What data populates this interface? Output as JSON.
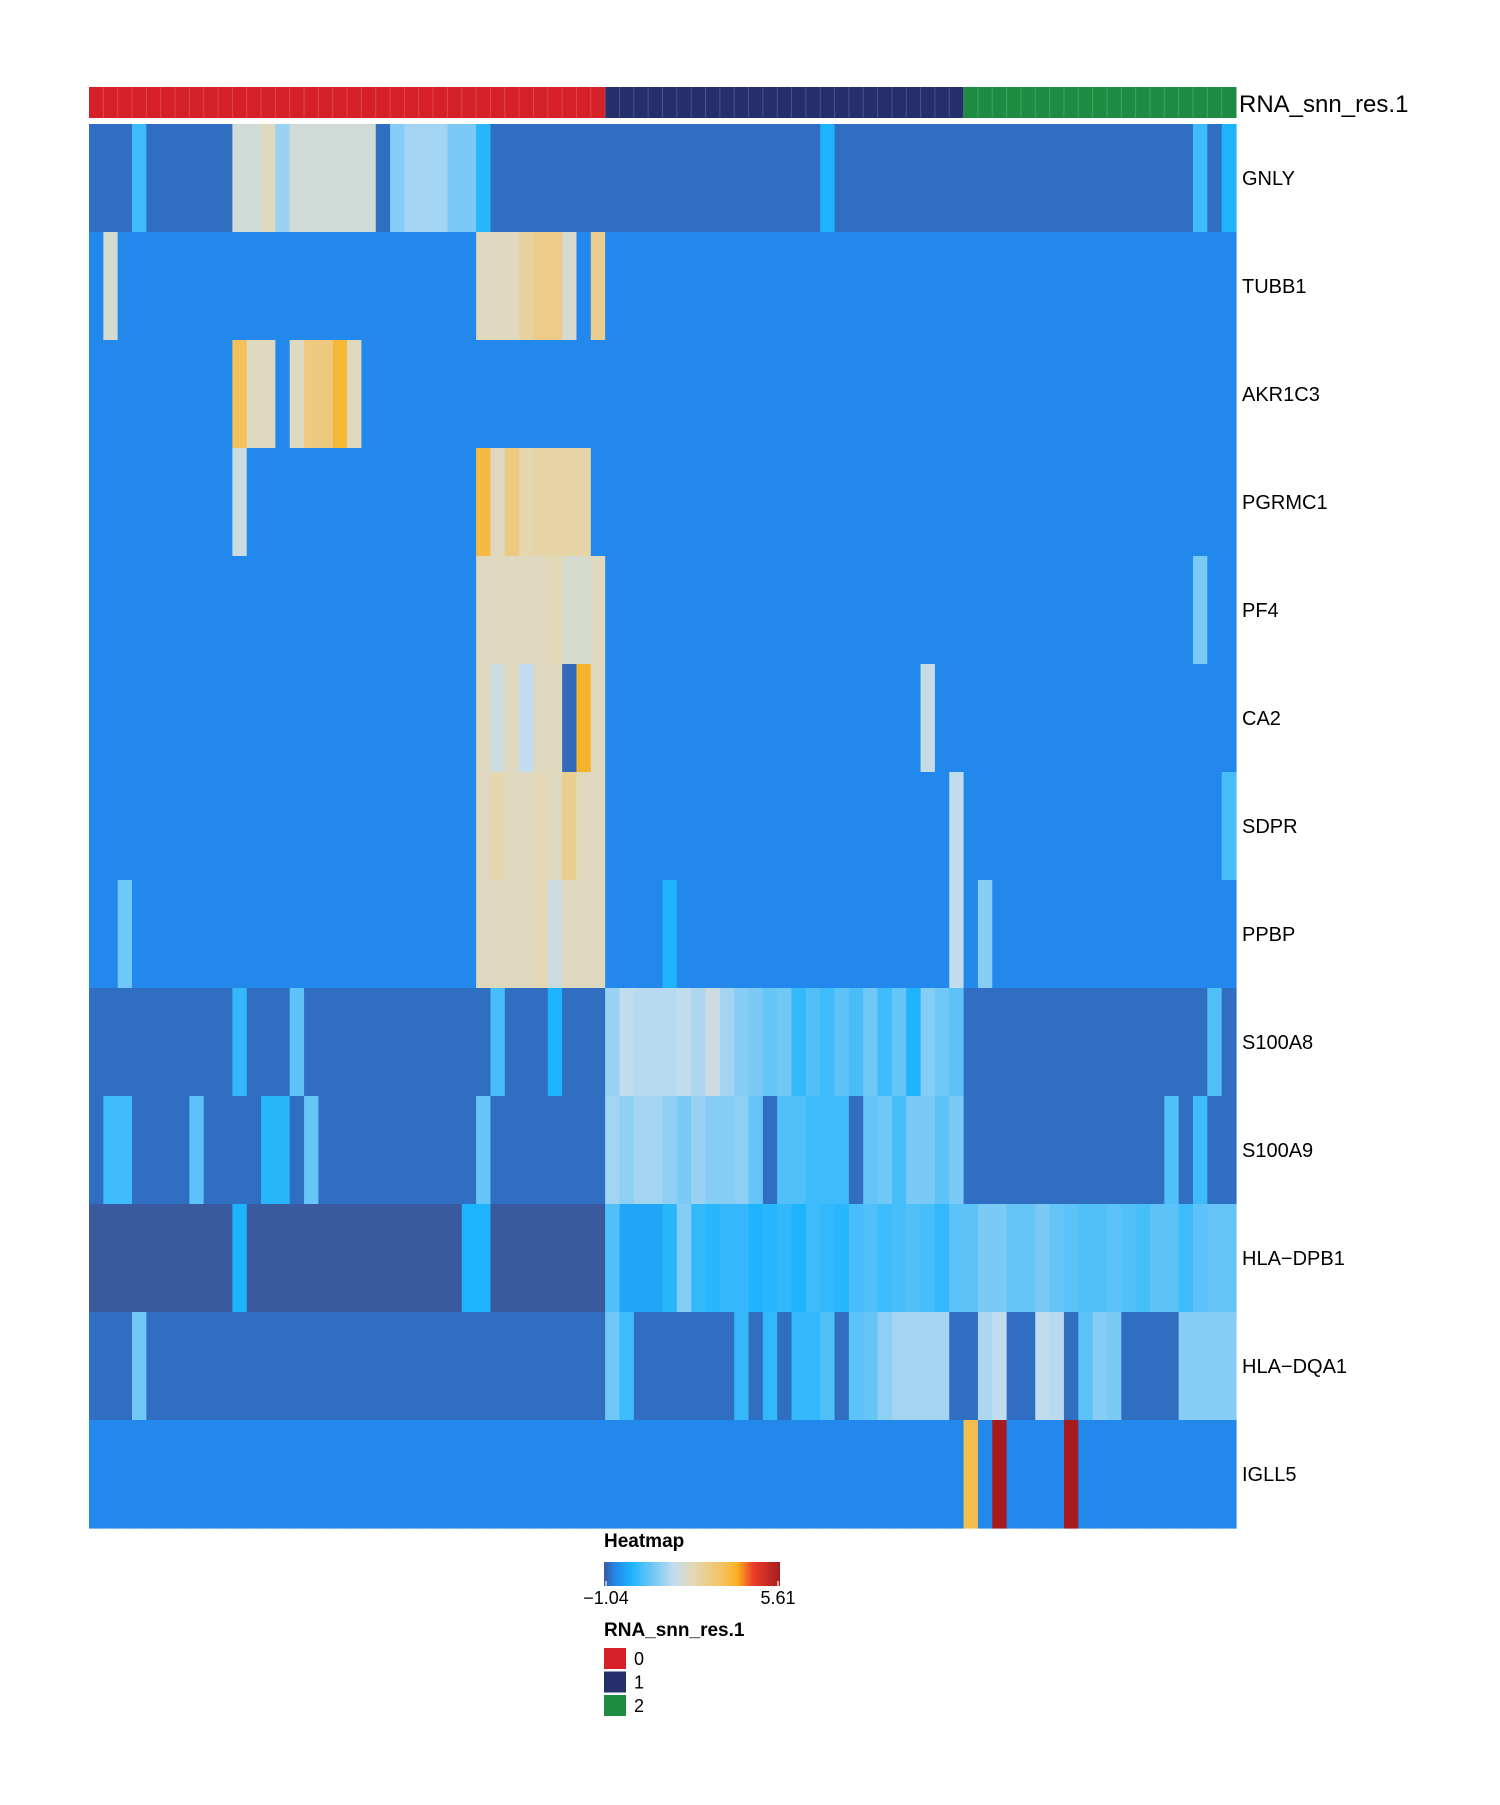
{
  "chart_data": {
    "type": "heatmap",
    "annotation_name": "RNA_snn_res.1",
    "groups": [
      {
        "label": "0",
        "color": "#d62027",
        "count": 36
      },
      {
        "label": "1",
        "color": "#252f6b",
        "count": 25
      },
      {
        "label": "2",
        "color": "#1d8b42",
        "count": 19
      }
    ],
    "genes": [
      "GNLY",
      "TUBB1",
      "AKR1C3",
      "PGRMC1",
      "PF4",
      "CA2",
      "SDPR",
      "PPBP",
      "S100A8",
      "S100A9",
      "HLA−DPB1",
      "HLA−DQA1",
      "IGLL5"
    ],
    "baselines": [
      -0.85,
      -0.6,
      -0.6,
      -0.6,
      -0.6,
      -0.6,
      -0.6,
      -0.6,
      -0.85,
      -0.85,
      -1.04,
      -0.85,
      -0.6
    ],
    "highlights": [
      [
        [
          3,
          0.3
        ],
        [
          10,
          1.9
        ],
        [
          11,
          1.9
        ],
        [
          12,
          2.2
        ],
        [
          13,
          1.2
        ],
        [
          14,
          1.9
        ],
        [
          15,
          1.9
        ],
        [
          16,
          1.9
        ],
        [
          17,
          1.9
        ],
        [
          18,
          1.9
        ],
        [
          19,
          1.9
        ],
        [
          21,
          1.0
        ],
        [
          22,
          1.3
        ],
        [
          23,
          1.3
        ],
        [
          24,
          1.3
        ],
        [
          25,
          0.9
        ],
        [
          26,
          0.9
        ],
        [
          27,
          0.1
        ],
        [
          51,
          0.0
        ],
        [
          77,
          0.3
        ],
        [
          79,
          0.0
        ]
      ],
      [
        [
          1,
          2.0
        ],
        [
          27,
          2.2
        ],
        [
          28,
          2.2
        ],
        [
          29,
          2.2
        ],
        [
          30,
          2.6
        ],
        [
          31,
          2.9
        ],
        [
          32,
          2.9
        ],
        [
          33,
          2.0
        ],
        [
          35,
          2.8
        ]
      ],
      [
        [
          10,
          3.5
        ],
        [
          11,
          2.2
        ],
        [
          12,
          2.2
        ],
        [
          14,
          2.2
        ],
        [
          15,
          3.0
        ],
        [
          16,
          3.0
        ],
        [
          17,
          3.8
        ],
        [
          18,
          2.2
        ]
      ],
      [
        [
          10,
          1.8
        ],
        [
          27,
          3.7
        ],
        [
          28,
          2.2
        ],
        [
          29,
          3.0
        ],
        [
          30,
          2.4
        ],
        [
          31,
          2.5
        ],
        [
          32,
          2.5
        ],
        [
          33,
          2.5
        ],
        [
          34,
          2.5
        ]
      ],
      [
        [
          27,
          2.2
        ],
        [
          28,
          2.2
        ],
        [
          29,
          2.2
        ],
        [
          30,
          2.2
        ],
        [
          31,
          2.2
        ],
        [
          32,
          2.3
        ],
        [
          33,
          2.0
        ],
        [
          34,
          2.0
        ],
        [
          35,
          2.2
        ],
        [
          77,
          0.9
        ]
      ],
      [
        [
          27,
          2.2
        ],
        [
          28,
          1.8
        ],
        [
          29,
          2.2
        ],
        [
          30,
          1.6
        ],
        [
          31,
          2.2
        ],
        [
          32,
          2.2
        ],
        [
          33,
          -0.9
        ],
        [
          34,
          3.9
        ],
        [
          35,
          2.2
        ],
        [
          58,
          1.7
        ]
      ],
      [
        [
          27,
          2.2
        ],
        [
          28,
          2.4
        ],
        [
          29,
          2.2
        ],
        [
          30,
          2.2
        ],
        [
          31,
          2.3
        ],
        [
          32,
          2.2
        ],
        [
          33,
          2.8
        ],
        [
          34,
          2.2
        ],
        [
          35,
          2.2
        ],
        [
          60,
          1.6
        ],
        [
          79,
          0.4
        ]
      ],
      [
        [
          2,
          0.8
        ],
        [
          27,
          2.2
        ],
        [
          28,
          2.2
        ],
        [
          29,
          2.2
        ],
        [
          30,
          2.2
        ],
        [
          31,
          2.3
        ],
        [
          32,
          1.8
        ],
        [
          33,
          2.2
        ],
        [
          34,
          2.2
        ],
        [
          35,
          2.2
        ],
        [
          40,
          0.0
        ],
        [
          60,
          1.6
        ],
        [
          62,
          1.0
        ]
      ],
      [
        [
          10,
          0.2
        ],
        [
          14,
          0.6
        ],
        [
          28,
          0.4
        ],
        [
          32,
          0.0
        ],
        [
          36,
          1.2
        ],
        [
          37,
          1.6
        ],
        [
          38,
          1.5
        ],
        [
          39,
          1.5
        ],
        [
          40,
          1.5
        ],
        [
          41,
          1.6
        ],
        [
          42,
          1.4
        ],
        [
          43,
          1.8
        ],
        [
          44,
          1.3
        ],
        [
          45,
          1.0
        ],
        [
          46,
          0.9
        ],
        [
          47,
          0.7
        ],
        [
          48,
          0.8
        ],
        [
          49,
          0.2
        ],
        [
          50,
          0.5
        ],
        [
          51,
          0.3
        ],
        [
          52,
          0.6
        ],
        [
          53,
          0.4
        ],
        [
          54,
          0.8
        ],
        [
          55,
          0.3
        ],
        [
          56,
          0.7
        ],
        [
          57,
          0.0
        ],
        [
          58,
          1.0
        ],
        [
          59,
          0.8
        ],
        [
          60,
          0.6
        ],
        [
          78,
          0.5
        ]
      ],
      [
        [
          1,
          0.3
        ],
        [
          2,
          0.3
        ],
        [
          7,
          0.6
        ],
        [
          12,
          0.1
        ],
        [
          13,
          0.1
        ],
        [
          15,
          0.7
        ],
        [
          27,
          0.7
        ],
        [
          36,
          1.3
        ],
        [
          37,
          1.1
        ],
        [
          38,
          1.3
        ],
        [
          39,
          1.3
        ],
        [
          40,
          1.1
        ],
        [
          41,
          0.9
        ],
        [
          42,
          1.2
        ],
        [
          43,
          1.0
        ],
        [
          44,
          1.0
        ],
        [
          45,
          1.1
        ],
        [
          46,
          0.7
        ],
        [
          48,
          0.5
        ],
        [
          49,
          0.5
        ],
        [
          50,
          0.3
        ],
        [
          51,
          0.3
        ],
        [
          52,
          0.3
        ],
        [
          54,
          0.7
        ],
        [
          55,
          0.8
        ],
        [
          56,
          0.4
        ],
        [
          57,
          0.9
        ],
        [
          58,
          0.9
        ],
        [
          59,
          0.6
        ],
        [
          60,
          0.9
        ],
        [
          75,
          0.5
        ],
        [
          77,
          0.3
        ]
      ],
      [
        [
          10,
          0.0
        ],
        [
          26,
          0.0
        ],
        [
          27,
          0.0
        ],
        [
          36,
          0.5
        ],
        [
          37,
          -0.2
        ],
        [
          38,
          -0.2
        ],
        [
          39,
          -0.2
        ],
        [
          40,
          0.1
        ],
        [
          41,
          1.0
        ],
        [
          42,
          0.2
        ],
        [
          43,
          0.1
        ],
        [
          44,
          0.2
        ],
        [
          45,
          0.2
        ],
        [
          46,
          0.0
        ],
        [
          47,
          0.1
        ],
        [
          48,
          0.2
        ],
        [
          49,
          0.0
        ],
        [
          50,
          0.3
        ],
        [
          51,
          0.2
        ],
        [
          52,
          0.1
        ],
        [
          53,
          0.4
        ],
        [
          54,
          0.5
        ],
        [
          55,
          0.3
        ],
        [
          56,
          0.4
        ],
        [
          57,
          0.5
        ],
        [
          58,
          0.4
        ],
        [
          59,
          0.2
        ],
        [
          60,
          0.6
        ],
        [
          61,
          0.6
        ],
        [
          62,
          0.9
        ],
        [
          63,
          0.9
        ],
        [
          64,
          0.7
        ],
        [
          65,
          0.7
        ],
        [
          66,
          0.9
        ],
        [
          67,
          0.7
        ],
        [
          68,
          0.6
        ],
        [
          69,
          0.5
        ],
        [
          70,
          0.5
        ],
        [
          71,
          0.6
        ],
        [
          72,
          0.5
        ],
        [
          73,
          0.4
        ],
        [
          74,
          0.6
        ],
        [
          75,
          0.6
        ],
        [
          76,
          0.3
        ],
        [
          77,
          0.6
        ],
        [
          78,
          0.7
        ],
        [
          79,
          0.7
        ]
      ],
      [
        [
          3,
          0.8
        ],
        [
          36,
          0.8
        ],
        [
          37,
          0.3
        ],
        [
          45,
          0.2
        ],
        [
          47,
          0.2
        ],
        [
          49,
          0.2
        ],
        [
          50,
          0.2
        ],
        [
          51,
          0.5
        ],
        [
          53,
          0.6
        ],
        [
          54,
          0.7
        ],
        [
          55,
          1.1
        ],
        [
          56,
          1.3
        ],
        [
          57,
          1.3
        ],
        [
          58,
          1.3
        ],
        [
          59,
          1.3
        ],
        [
          62,
          1.4
        ],
        [
          63,
          1.6
        ],
        [
          66,
          1.6
        ],
        [
          67,
          1.5
        ],
        [
          69,
          0.6
        ],
        [
          70,
          1.0
        ],
        [
          71,
          0.9
        ],
        [
          76,
          1.0
        ],
        [
          77,
          1.0
        ],
        [
          78,
          1.0
        ],
        [
          79,
          1.0
        ]
      ],
      [
        [
          61,
          3.6
        ],
        [
          63,
          5.61
        ],
        [
          68,
          5.61
        ]
      ]
    ],
    "color_scale": {
      "min": -1.04,
      "max": 5.61,
      "stops": [
        [
          -1.04,
          "#3a5aa0"
        ],
        [
          -0.6,
          "#2388ec"
        ],
        [
          0.0,
          "#1eb3fd"
        ],
        [
          1.6,
          "#c2dcef"
        ],
        [
          2.3,
          "#e3d8b6"
        ],
        [
          3.5,
          "#f4c05a"
        ],
        [
          4.0,
          "#f8b020"
        ],
        [
          4.6,
          "#ec3d2a"
        ],
        [
          5.61,
          "#a61c1e"
        ]
      ]
    },
    "legend": {
      "heatmap_title": "Heatmap",
      "min_label": "−1.04",
      "max_label": "5.61",
      "annotation_title": "RNA_snn_res.1"
    }
  }
}
